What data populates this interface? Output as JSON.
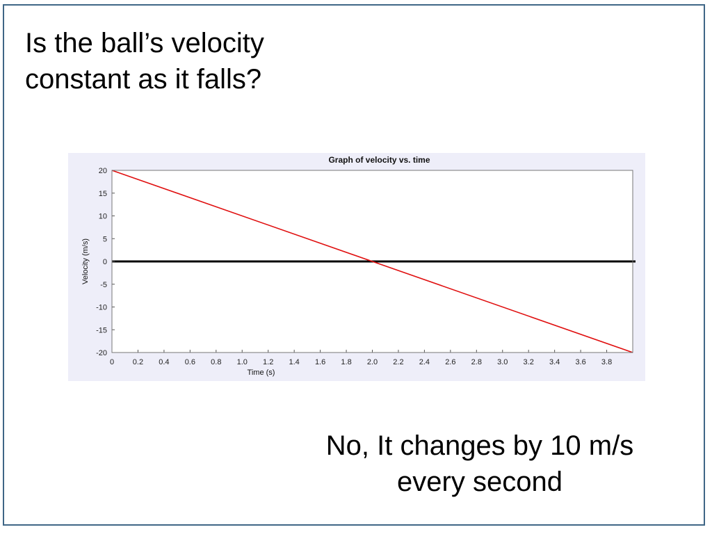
{
  "slide": {
    "question_lines": [
      "Is the ball’s velocity",
      "constant as it falls?"
    ],
    "answer_lines": [
      "No, It changes by 10 m/s",
      "every second"
    ]
  },
  "colors": {
    "frame": "#3f6686",
    "panel_background": "#eeeef9",
    "series_line": "#e01010",
    "zero_line": "#000000",
    "grid": "#cfcfcf"
  },
  "chart_data": {
    "type": "line",
    "title": "Graph of velocity vs. time",
    "xlabel": "Time (s)",
    "ylabel": "Velocity (m/s)",
    "xlim": [
      0,
      4
    ],
    "ylim": [
      -20,
      20
    ],
    "x_ticks": [
      0,
      0.2,
      0.4,
      0.6,
      0.8,
      1.0,
      1.2,
      1.4,
      1.6,
      1.8,
      2.0,
      2.2,
      2.4,
      2.6,
      2.8,
      3.0,
      3.2,
      3.4,
      3.6,
      3.8
    ],
    "x_tick_labels": [
      "0",
      "0.2",
      "0.4",
      "0.6",
      "0.8",
      "1.0",
      "1.2",
      "1.4",
      "1.6",
      "1.8",
      "2.0",
      "2.2",
      "2.4",
      "2.6",
      "2.8",
      "3.0",
      "3.2",
      "3.4",
      "3.6",
      "3.8"
    ],
    "y_ticks": [
      20,
      15,
      10,
      5,
      0,
      -5,
      -10,
      -15,
      -20
    ],
    "y_tick_labels": [
      "20",
      "15",
      "10",
      "5",
      "0",
      "-5",
      "-10",
      "-15",
      "-20"
    ],
    "grid": true,
    "series": [
      {
        "x": [
          0,
          4
        ],
        "y": [
          20,
          -20
        ]
      }
    ],
    "reference_lines": [
      {
        "axis": "y",
        "value": 0
      }
    ]
  }
}
